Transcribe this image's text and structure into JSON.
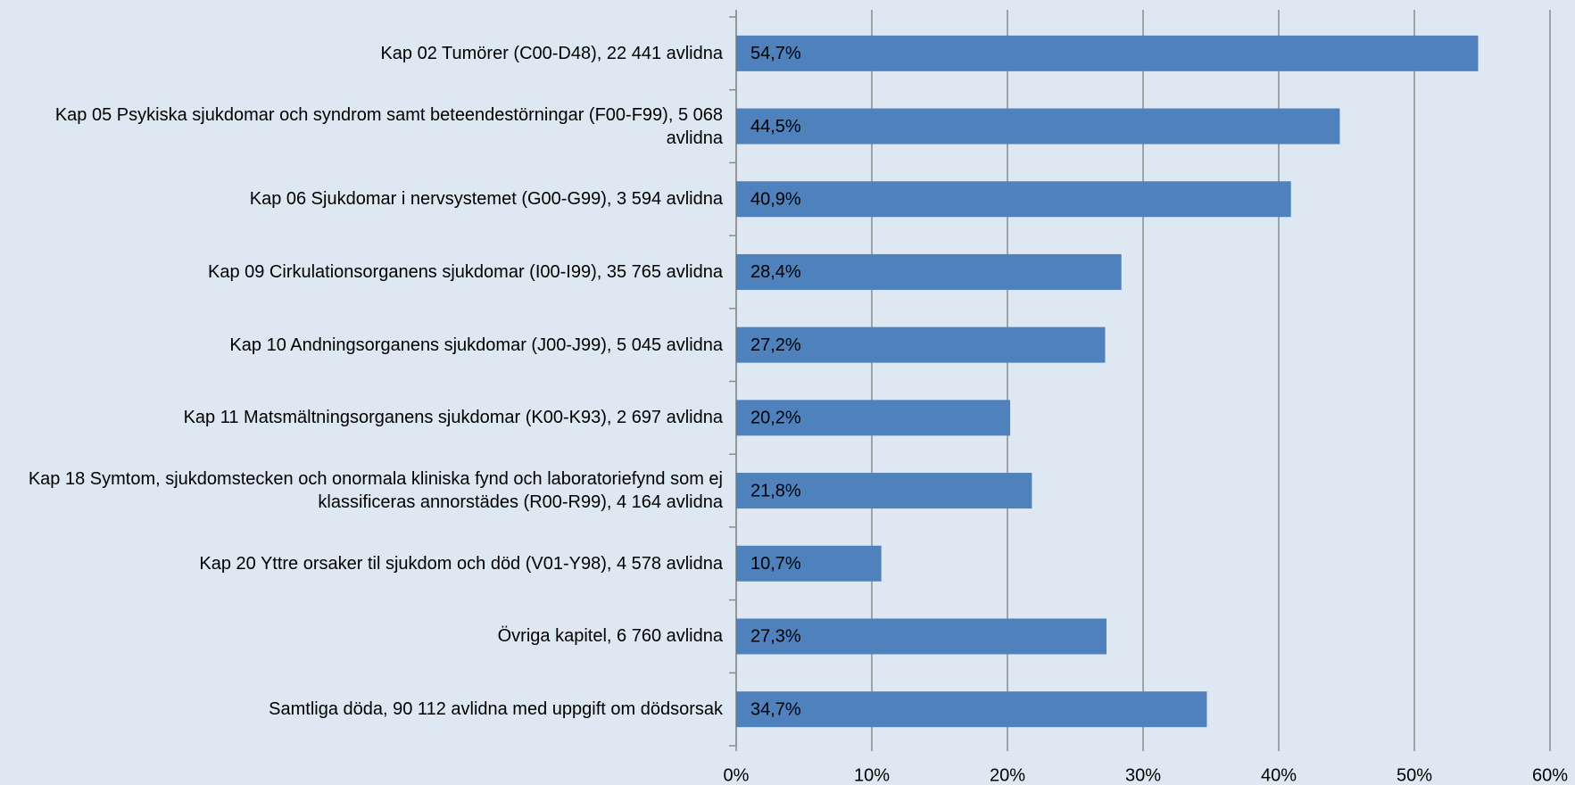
{
  "chart_data": {
    "type": "bar",
    "orientation": "horizontal",
    "categories": [
      "Kap 02 Tumörer (C00-D48), 22 441 avlidna",
      "Kap 05 Psykiska sjukdomar och syndrom samt beteendestörningar (F00-F99), 5 068 avlidna",
      "Kap 06 Sjukdomar i nervsystemet (G00-G99), 3 594 avlidna",
      "Kap 09 Cirkulationsorganens sjukdomar (I00-I99), 35 765 avlidna",
      "Kap 10 Andningsorganens sjukdomar (J00-J99), 5 045 avlidna",
      "Kap 11 Matsmältningsorganens sjukdomar (K00-K93), 2 697 avlidna",
      "Kap 18 Symtom, sjukdomstecken och onormala kliniska fynd och laboratoriefynd som ej klassificeras annorstädes (R00-R99), 4 164 avlidna",
      "Kap 20 Yttre orsaker til sjukdom och död (V01-Y98), 4 578 avlidna",
      "Övriga kapitel, 6 760 avlidna",
      "Samtliga döda, 90 112 avlidna med uppgift om dödsorsak"
    ],
    "values": [
      54.7,
      44.5,
      40.9,
      28.4,
      27.2,
      20.2,
      21.8,
      10.7,
      27.3,
      34.7
    ],
    "value_labels": [
      "54,7%",
      "44,5%",
      "40,9%",
      "28,4%",
      "27,2%",
      "20,2%",
      "21,8%",
      "10,7%",
      "27,3%",
      "34,7%"
    ],
    "color": "#4f81bd",
    "xlim": [
      0,
      60
    ],
    "xticks": [
      {
        "value": 0,
        "label": "0%"
      },
      {
        "value": 10,
        "label": "10%"
      },
      {
        "value": 20,
        "label": "20%"
      },
      {
        "value": 30,
        "label": "30%"
      },
      {
        "value": 40,
        "label": "40%"
      },
      {
        "value": 50,
        "label": "50%"
      },
      {
        "value": 60,
        "label": "60%"
      }
    ],
    "grid": true
  }
}
